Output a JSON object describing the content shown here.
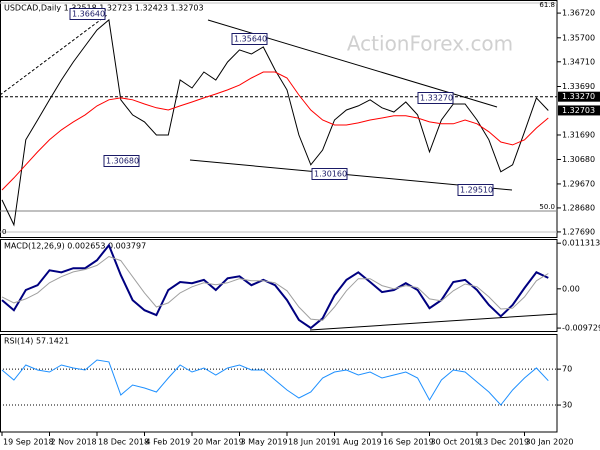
{
  "chart_data": [
    {
      "type": "line",
      "title": "USDCAD,Daily  1.32518 1.32723 1.32423 1.32703",
      "watermark": "ActionForex.com",
      "categories": [
        "19 Sep 2018",
        null,
        null,
        null,
        "2 Nov 2018",
        null,
        null,
        null,
        "18 Dec 2018",
        null,
        null,
        null,
        "4 Feb 2019",
        null,
        null,
        null,
        "20 Mar 2019",
        null,
        null,
        null,
        "3 May 2019",
        null,
        null,
        null,
        "18 Jun 2019",
        null,
        null,
        null,
        "1 Aug 2019",
        null,
        null,
        null,
        "16 Sep 2019",
        null,
        null,
        null,
        "30 Oct 2019",
        null,
        null,
        null,
        "13 Dec 2019",
        null,
        null,
        null,
        "30 Jan 2020",
        null,
        null
      ],
      "series": [
        {
          "color": "#000000",
          "values": [
            1.2901,
            1.2798,
            1.3149,
            1.3231,
            1.3314,
            1.3396,
            1.347,
            1.3536,
            1.3602,
            1.3644,
            1.3314,
            1.3252,
            1.3223,
            1.3169,
            1.3169,
            1.3396,
            1.3363,
            1.3429,
            1.3396,
            1.347,
            1.352,
            1.3503,
            1.3532,
            1.3437,
            1.3355,
            1.3169,
            1.3046,
            1.3107,
            1.3231,
            1.3272,
            1.3289,
            1.3314,
            1.3281,
            1.3264,
            1.3305,
            1.3252,
            1.3099,
            1.3231,
            1.3297,
            1.3297,
            1.3231,
            1.3149,
            1.3017,
            1.3046,
            1.3182,
            1.3322,
            1.327
          ]
        },
        {
          "color": "#ff0000",
          "values": [
            1.2942,
            1.2992,
            1.3046,
            1.3099,
            1.3149,
            1.319,
            1.3223,
            1.3252,
            1.3289,
            1.3314,
            1.3322,
            1.3314,
            1.3297,
            1.3281,
            1.3272,
            1.3289,
            1.3305,
            1.3322,
            1.3338,
            1.3355,
            1.3375,
            1.3404,
            1.3429,
            1.3429,
            1.3404,
            1.3334,
            1.3272,
            1.3231,
            1.321,
            1.321,
            1.3219,
            1.3231,
            1.3239,
            1.3248,
            1.3248,
            1.3239,
            1.3223,
            1.3215,
            1.3215,
            1.3231,
            1.3215,
            1.3182,
            1.314,
            1.3128,
            1.3149,
            1.3198,
            1.3239
          ]
        }
      ],
      "ylim": [
        1.2748,
        1.3726
      ],
      "yticks": [
        {
          "value": 1.3672,
          "label": "1.36720"
        },
        {
          "value": 1.357,
          "label": "1.35700"
        },
        {
          "value": 1.3471,
          "label": "1.34710"
        },
        {
          "value": 1.3369,
          "label": "1.33690"
        },
        {
          "value": 1.3169,
          "label": "1.31690"
        },
        {
          "value": 1.3068,
          "label": "1.30680"
        },
        {
          "value": 1.2967,
          "label": "1.29670"
        },
        {
          "value": 1.2868,
          "label": "1.28680"
        },
        {
          "value": 1.2769,
          "label": "1.27690"
        }
      ],
      "level": {
        "value": 1.3327,
        "label": "1.33270"
      },
      "current": {
        "value": 1.32703,
        "label": "1.32703"
      },
      "annotations": [
        "1.36640",
        "1.35640",
        "1.33270",
        "1.30680",
        "1.30160",
        "1.29510"
      ],
      "fib_labels": [
        "61.8",
        "50.0",
        "0"
      ],
      "grid": false
    },
    {
      "type": "line",
      "title": "MACD(12,26,9) 0.002653 0.003797",
      "series": [
        {
          "color": "#000080",
          "width": 2,
          "values": [
            -0.0028,
            -0.0053,
            -0.0003,
            0.0009,
            0.0046,
            0.0041,
            0.0051,
            0.0051,
            0.0071,
            0.0108,
            0.0034,
            -0.0028,
            -0.0053,
            -0.0065,
            -0.0003,
            0.0017,
            0.0014,
            0.0022,
            -0.0003,
            0.0026,
            0.0031,
            0.0009,
            0.0022,
            0.0009,
            -0.0028,
            -0.0077,
            -0.0097,
            -0.0073,
            -0.0016,
            0.0022,
            0.0041,
            0.0017,
            -0.0008,
            -0.0003,
            0.0014,
            -0.0003,
            -0.0048,
            -0.0028,
            0.0017,
            0.0022,
            -0.0003,
            -0.004,
            -0.0068,
            -0.004,
            0.0002,
            0.0041,
            0.0027
          ]
        },
        {
          "color": "#a0a0a0",
          "width": 1,
          "values": [
            -0.002,
            -0.0035,
            -0.0025,
            -0.001,
            0.0015,
            0.003,
            0.0042,
            0.0048,
            0.0058,
            0.008,
            0.007,
            0.003,
            -0.001,
            -0.0045,
            -0.0035,
            -0.001,
            0.0005,
            0.0015,
            0.001,
            0.0015,
            0.0025,
            0.002,
            0.002,
            0.0015,
            -0.0005,
            -0.0045,
            -0.0075,
            -0.0078,
            -0.0045,
            -0.0005,
            0.0025,
            0.0025,
            0.0008,
            0.0,
            0.0008,
            0.0003,
            -0.0025,
            -0.003,
            -0.0005,
            0.0012,
            0.0005,
            -0.002,
            -0.005,
            -0.0048,
            -0.002,
            0.002,
            0.0038
          ]
        }
      ],
      "ylim": [
        -0.0107,
        0.0121
      ],
      "yticks": [
        0.011313,
        {
          "value": 0,
          "label": "0.00"
        },
        -0.009729
      ],
      "grid": false
    },
    {
      "type": "line",
      "title": "RSI(14) 57.1421",
      "series": [
        {
          "color": "#1e90ff",
          "width": 1,
          "values": [
            69.0,
            57.9,
            74.6,
            69.0,
            66.8,
            74.6,
            71.3,
            69.0,
            80.2,
            78.0,
            41.2,
            52.3,
            49.0,
            44.5,
            60.1,
            74.6,
            66.8,
            71.3,
            63.5,
            71.3,
            74.6,
            69.0,
            69.0,
            57.9,
            46.8,
            37.9,
            44.5,
            60.1,
            66.8,
            69.0,
            63.5,
            66.8,
            60.1,
            63.5,
            66.8,
            60.1,
            35.6,
            57.9,
            69.0,
            66.8,
            55.7,
            44.5,
            30.1,
            46.8,
            60.1,
            71.3,
            57.1
          ]
        }
      ],
      "ylim": [
        0,
        108
      ],
      "yticks": [
        30,
        70
      ],
      "grid": true
    }
  ]
}
